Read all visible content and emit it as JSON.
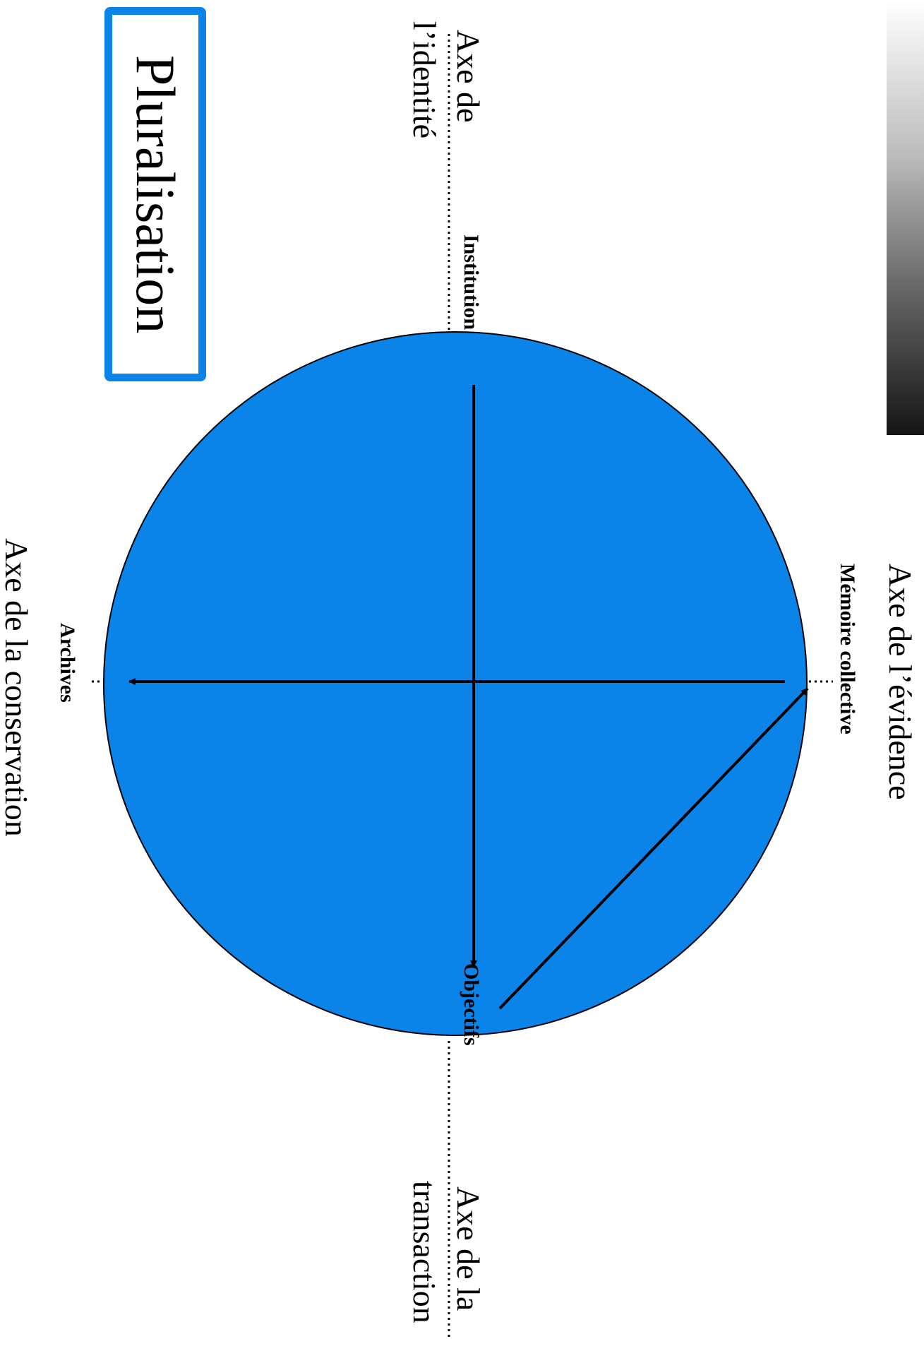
{
  "title": "Pluralisation",
  "colors": {
    "circle_fill": "#0a84e8",
    "title_border": "#0a84e8",
    "lines": "#000000"
  },
  "axes": {
    "identity": [
      "Axe de",
      "l’identité"
    ],
    "evidence": "Axe de l’évidence",
    "conservation": "Axe de la conservation",
    "transaction": [
      "Axe de la",
      "transaction"
    ]
  },
  "poles": {
    "institution": "Institution",
    "memoire_collective": "Mémoire collective",
    "archives": "Archives",
    "objectifs": "Objectifs"
  },
  "decorations": {
    "gradient_bar": "white-to-black gradient"
  }
}
